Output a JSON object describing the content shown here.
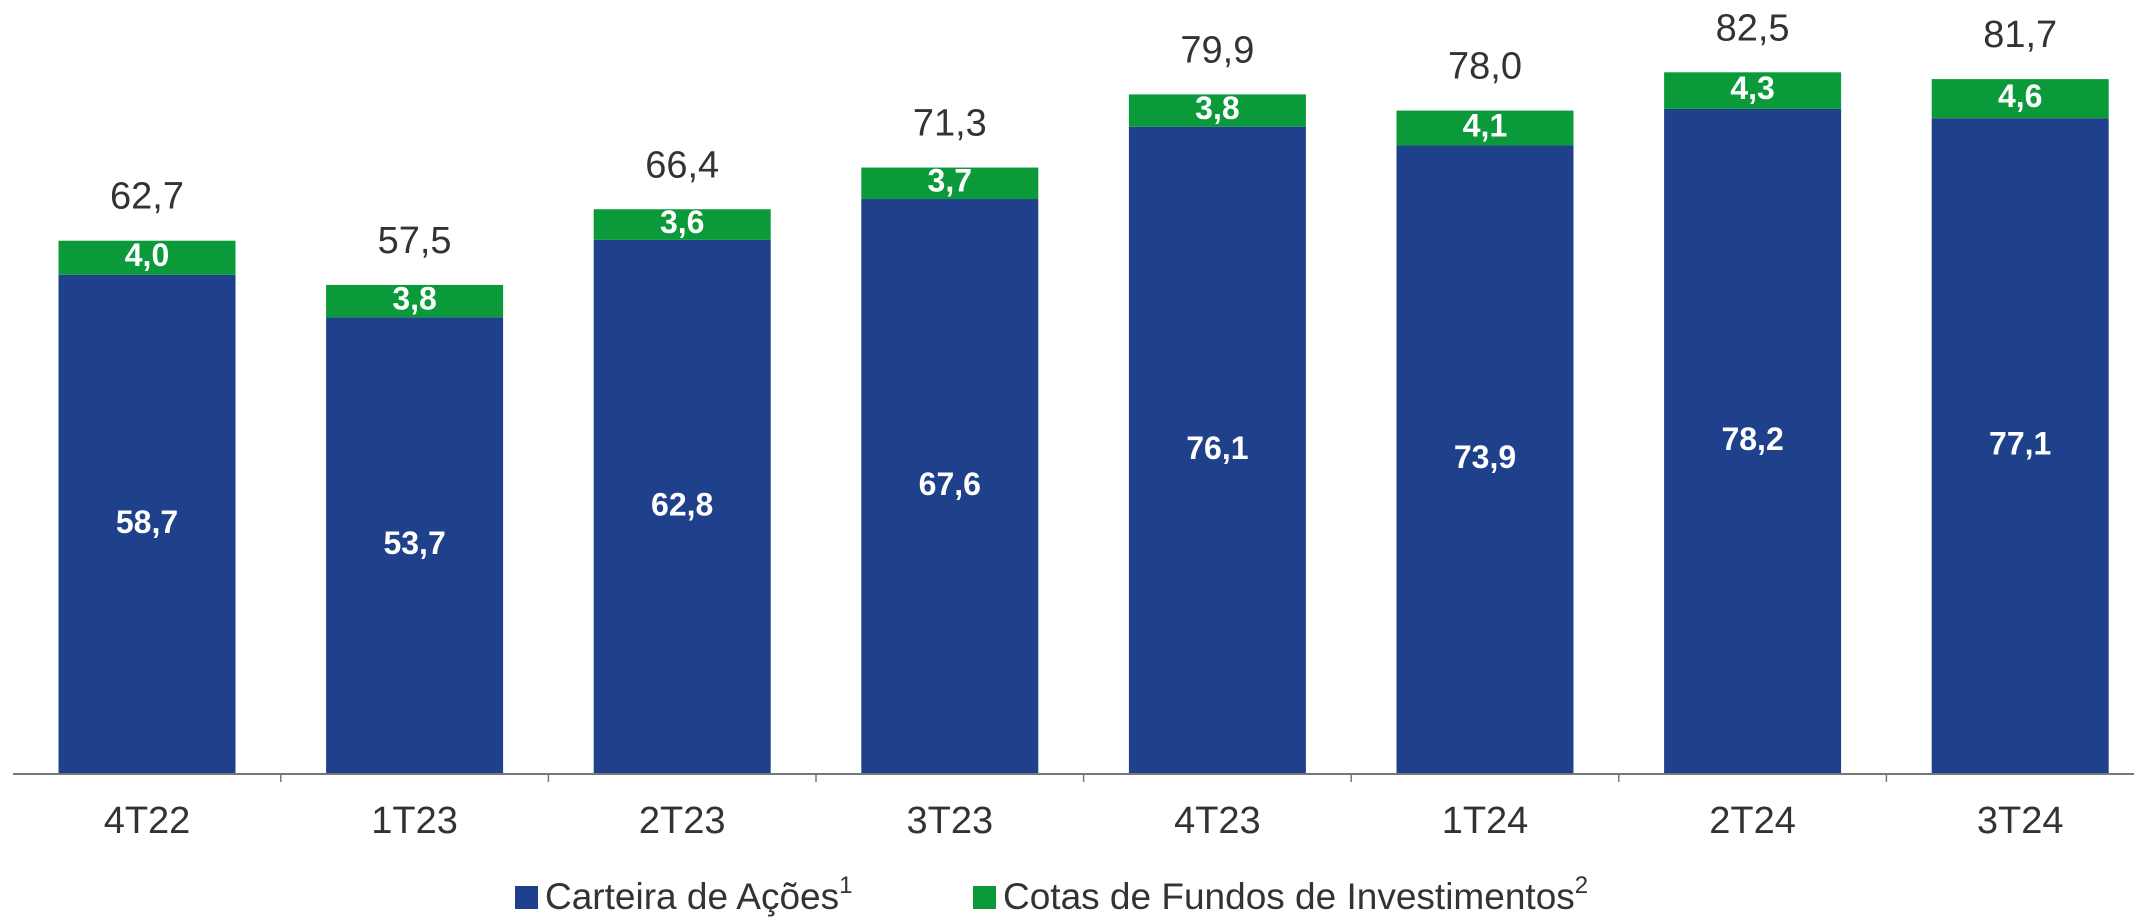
{
  "chart_data": {
    "type": "stacked-bar",
    "categories": [
      "4T22",
      "1T23",
      "2T23",
      "3T23",
      "4T23",
      "1T24",
      "2T24",
      "3T24"
    ],
    "series": [
      {
        "name": "Carteira de Ações",
        "footnote": "1",
        "color": "#1f418c",
        "values": [
          58.7,
          53.7,
          62.8,
          67.6,
          76.1,
          73.9,
          78.2,
          77.1
        ],
        "value_labels": [
          "58,7",
          "53,7",
          "62,8",
          "67,6",
          "76,1",
          "73,9",
          "78,2",
          "77,1"
        ]
      },
      {
        "name": "Cotas de Fundos de Investimentos",
        "footnote": "2",
        "color": "#0a9a3a",
        "values": [
          4.0,
          3.8,
          3.6,
          3.7,
          3.8,
          4.1,
          4.3,
          4.6
        ],
        "value_labels": [
          "4,0",
          "3,8",
          "3,6",
          "3,7",
          "3,8",
          "4,1",
          "4,3",
          "4,6"
        ]
      }
    ],
    "totals": {
      "values": [
        62.7,
        57.5,
        66.4,
        71.3,
        79.9,
        78.0,
        82.5,
        81.7
      ],
      "value_labels": [
        "62,7",
        "57,5",
        "66,4",
        "71,3",
        "79,9",
        "78,0",
        "82,5",
        "81,7"
      ]
    },
    "ylim": [
      0,
      91
    ]
  }
}
